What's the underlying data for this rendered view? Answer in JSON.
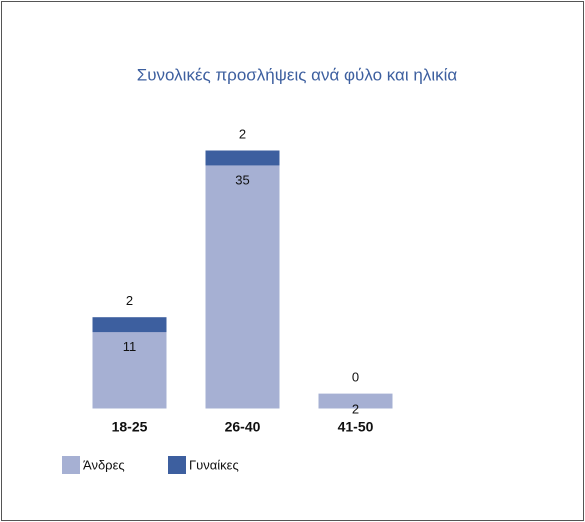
{
  "chart_data": {
    "type": "stacked-bar",
    "title": "Συνολικές προσλήψεις ανά φύλο και ηλικία",
    "categories": [
      "18-25",
      "26-40",
      "41-50",
      null
    ],
    "series": [
      {
        "name": "Άνδρες",
        "color": "#a6b0d3",
        "values": [
          11,
          35,
          2,
          0
        ]
      },
      {
        "name": "Γυναίκες",
        "color": "#3d5f9f",
        "values": [
          2,
          2,
          0,
          0
        ]
      }
    ],
    "legend": "bottom-left"
  }
}
